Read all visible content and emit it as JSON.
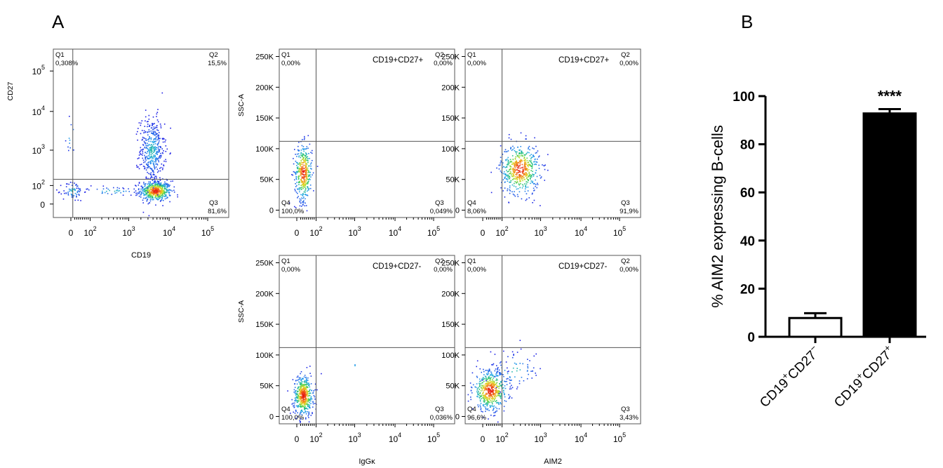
{
  "panels": {
    "a": {
      "letter": "A"
    },
    "b": {
      "letter": "B"
    }
  },
  "flow_axes": {
    "log_ticks": [
      "0",
      "10",
      "10",
      "10",
      "10"
    ],
    "log_exps": [
      "",
      "2",
      "3",
      "4",
      "5"
    ],
    "ssc_ticks": [
      "250K",
      "200K",
      "150K",
      "100K",
      "50K",
      "0"
    ]
  },
  "flow_plots": [
    {
      "id": "cd19-vs-cd27",
      "title": "",
      "xlabel": "CD19",
      "ylabel": "CD27",
      "y_is_log": true,
      "gate_x": 10,
      "gate_y": 150,
      "quadrants": {
        "q1_label": "Q1",
        "q1_value": "0,308%",
        "q2_label": "Q2",
        "q2_value": "15,5%",
        "q3_label": "Q3",
        "q3_value": "81,6%",
        "q4_label": "",
        "q4_value": ""
      },
      "colormap": "density: blue-cyan-green-yellow-red"
    },
    {
      "id": "iggk-cd19-cd27pos",
      "title": "CD19+CD27+",
      "xlabel": "",
      "ylabel": "SSC-A",
      "y_is_log": false,
      "gate_x": 100,
      "gate_y": 112000,
      "quadrants": {
        "q1_label": "Q1",
        "q1_value": "0,00%",
        "q2_label": "Q2",
        "q2_value": "0,00%",
        "q3_label": "Q3",
        "q3_value": "0,049%",
        "q4_label": "Q4",
        "q4_value": "100,0%"
      },
      "colormap": "density: blue-cyan-green-yellow-red"
    },
    {
      "id": "aim2-cd19-cd27pos",
      "title": "CD19+CD27+",
      "xlabel": "",
      "ylabel": "",
      "y_is_log": false,
      "gate_x": 100,
      "gate_y": 112000,
      "quadrants": {
        "q1_label": "Q1",
        "q1_value": "0,00%",
        "q2_label": "Q2",
        "q2_value": "0,00%",
        "q3_label": "Q3",
        "q3_value": "91,9%",
        "q4_label": "Q4",
        "q4_value": "8,06%"
      },
      "colormap": "density: blue-cyan-green-yellow-red"
    },
    {
      "id": "iggk-cd19-cd27neg",
      "title": "CD19+CD27-",
      "xlabel": "IgGκ",
      "ylabel": "SSC-A",
      "y_is_log": false,
      "gate_x": 100,
      "gate_y": 112000,
      "quadrants": {
        "q1_label": "Q1",
        "q1_value": "0,00%",
        "q2_label": "Q2",
        "q2_value": "0,00%",
        "q3_label": "Q3",
        "q3_value": "0,036%",
        "q4_label": "Q4",
        "q4_value": "100,0%"
      },
      "colormap": "density: blue-cyan-green-yellow-red"
    },
    {
      "id": "aim2-cd19-cd27neg",
      "title": "CD19+CD27-",
      "xlabel": "AIM2",
      "ylabel": "",
      "y_is_log": false,
      "gate_x": 100,
      "gate_y": 112000,
      "quadrants": {
        "q1_label": "Q1",
        "q1_value": "0,00%",
        "q2_label": "Q2",
        "q2_value": "0,00%",
        "q3_label": "Q3",
        "q3_value": "3,43%",
        "q4_label": "Q4",
        "q4_value": "96,6%"
      },
      "colormap": "density: blue-cyan-green-yellow-red"
    }
  ],
  "chart_data": {
    "type": "bar",
    "categories": [
      "CD19+CD27-",
      "CD19+CD27+"
    ],
    "category_display": [
      {
        "a": "CD19",
        "sup1": "+",
        "b": "CD27",
        "sup2": "−"
      },
      {
        "a": "CD19",
        "sup1": "+",
        "b": "CD27",
        "sup2": "+"
      }
    ],
    "values": [
      7.8,
      92.8
    ],
    "errors": [
      2.0,
      1.8
    ],
    "bar_fill": [
      "#ffffff",
      "#000000"
    ],
    "bar_stroke": "#000000",
    "ylabel": "% AIM2 expressing B-cells",
    "ylim": [
      0,
      100
    ],
    "yticks": [
      "0",
      "20",
      "40",
      "60",
      "80",
      "100"
    ],
    "annotations": [
      {
        "category": "CD19+CD27+",
        "text": "****"
      }
    ],
    "grid": false
  }
}
